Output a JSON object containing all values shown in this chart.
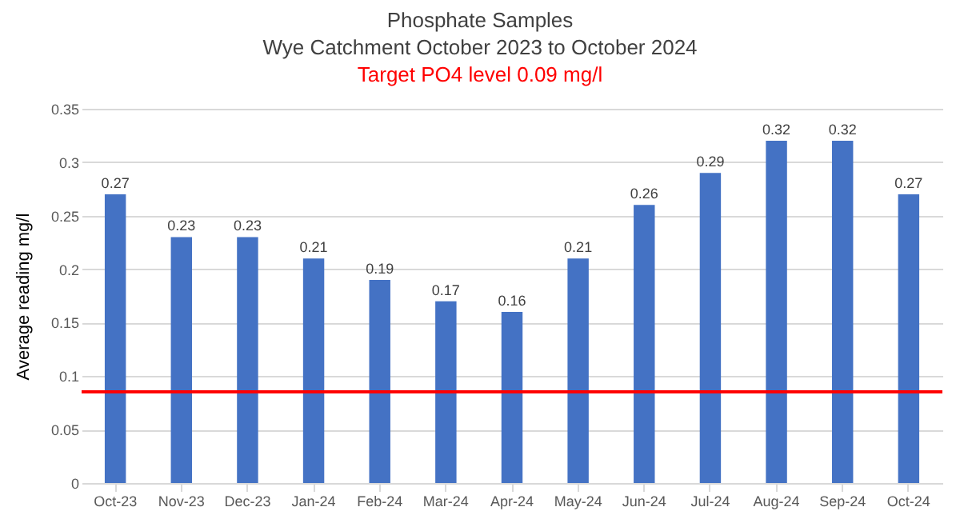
{
  "chart_data": {
    "type": "bar",
    "title": "Phosphate Samples",
    "subtitle": "Wye Catchment October 2023 to October 2024",
    "annotations": [
      "Target PO4 level 0.09 mg/l"
    ],
    "ylabel": "Average reading mg/l",
    "categories": [
      "Oct-23",
      "Nov-23",
      "Dec-23",
      "Jan-24",
      "Feb-24",
      "Mar-24",
      "Apr-24",
      "May-24",
      "Jun-24",
      "Jul-24",
      "Aug-24",
      "Sep-24",
      "Oct-24"
    ],
    "values": [
      0.27,
      0.23,
      0.23,
      0.21,
      0.19,
      0.17,
      0.16,
      0.21,
      0.26,
      0.29,
      0.32,
      0.32,
      0.27
    ],
    "color": "#4472c4",
    "data_labels": true,
    "ylim": [
      0,
      0.35
    ],
    "yticks": [
      0,
      0.05,
      0.1,
      0.15,
      0.2,
      0.25,
      0.3,
      0.35
    ],
    "grid": "y",
    "ref_lines": [
      {
        "axis": "y",
        "value": 0.085,
        "color": "#ff0000"
      }
    ]
  }
}
